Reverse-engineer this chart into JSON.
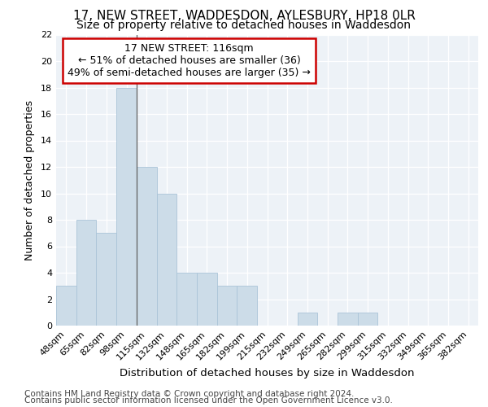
{
  "title1": "17, NEW STREET, WADDESDON, AYLESBURY, HP18 0LR",
  "title2": "Size of property relative to detached houses in Waddesdon",
  "xlabel": "Distribution of detached houses by size in Waddesdon",
  "ylabel": "Number of detached properties",
  "footnote1": "Contains HM Land Registry data © Crown copyright and database right 2024.",
  "footnote2": "Contains public sector information licensed under the Open Government Licence v3.0.",
  "categories": [
    "48sqm",
    "65sqm",
    "82sqm",
    "98sqm",
    "115sqm",
    "132sqm",
    "148sqm",
    "165sqm",
    "182sqm",
    "199sqm",
    "215sqm",
    "232sqm",
    "249sqm",
    "265sqm",
    "282sqm",
    "299sqm",
    "315sqm",
    "332sqm",
    "349sqm",
    "365sqm",
    "382sqm"
  ],
  "values": [
    3,
    8,
    7,
    18,
    12,
    10,
    4,
    4,
    3,
    3,
    0,
    0,
    1,
    0,
    1,
    1,
    0,
    0,
    0,
    0,
    0
  ],
  "bar_color": "#ccdce8",
  "bar_edge_color": "#aac4d8",
  "annotation_line1": "17 NEW STREET: 116sqm",
  "annotation_line2": "← 51% of detached houses are smaller (36)",
  "annotation_line3": "49% of semi-detached houses are larger (35) →",
  "annotation_box_color": "#cc0000",
  "ylim": [
    0,
    22
  ],
  "yticks": [
    0,
    2,
    4,
    6,
    8,
    10,
    12,
    14,
    16,
    18,
    20,
    22
  ],
  "bg_color": "#edf2f7",
  "grid_color": "#ffffff",
  "property_line_x": 4,
  "title1_fontsize": 11,
  "title2_fontsize": 10,
  "xlabel_fontsize": 9.5,
  "ylabel_fontsize": 9,
  "tick_fontsize": 8,
  "annotation_fontsize": 9,
  "footnote_fontsize": 7.5
}
